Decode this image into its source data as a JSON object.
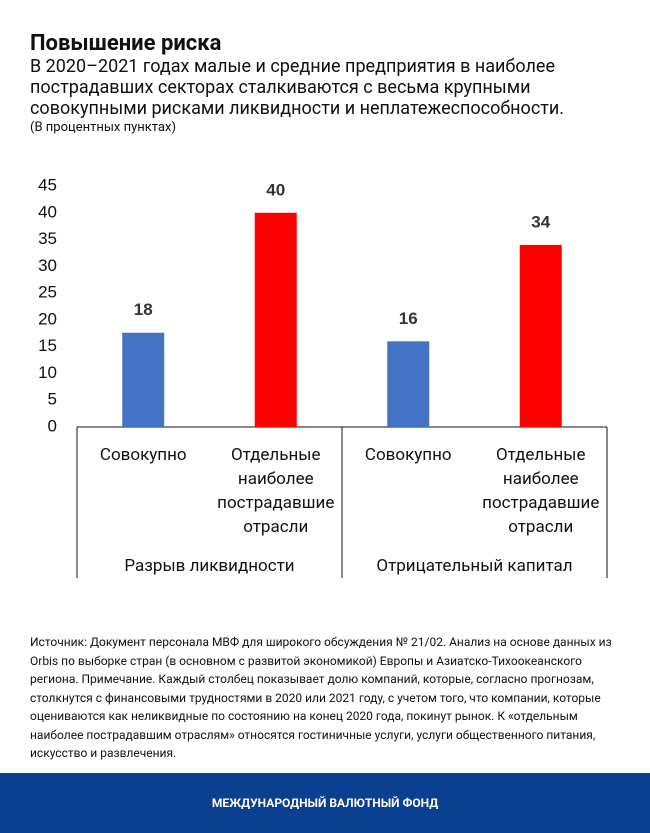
{
  "header": {
    "title": "Повышение риска",
    "subtitle": "В 2020–2021 годах малые и средние предприятия в наиболее пострадавших секторах сталкиваются с весьма крупными совокупными рисками ликвидности и неплатежеспособности.",
    "units": "(В процентных пунктах)"
  },
  "chart_data": {
    "type": "bar",
    "categories": [
      "Совокупно",
      "Отдельные наиболее пострадавшие отрасли",
      "Совокупно",
      "Отдельные наиболее пострадавшие отрасли"
    ],
    "groups": [
      "Разрыв ликвидности",
      "Отрицательный капитал"
    ],
    "values": [
      17.6,
      40,
      16,
      34
    ],
    "value_labels": [
      "18",
      "40",
      "16",
      "34"
    ],
    "colors": [
      "#4472c4",
      "#ff0000",
      "#4472c4",
      "#ff0000"
    ],
    "ylim": [
      0,
      45
    ],
    "yticks": [
      0,
      5,
      10,
      15,
      20,
      25,
      30,
      35,
      40,
      45
    ],
    "grid": false
  },
  "note": "Источник: Документ персонала МВФ для широкого обсуждения № 21/02. Анализ на основе данных из Orbis по выборке стран (в основном с развитой экономикой) Европы и Азиатско-Тихоокеанского региона. Примечание. Каждый столбец показывает долю компаний, которые, согласно прогнозам, столкнутся с финансовыми трудностями в 2020 или 2021 году, с учетом того, что компании, которые оцениваются как неликвидные по состоянию на конец 2020 года, покинут рынок. К «отдельным наиболее пострадавшим отраслям» относятся гостиничные услуги, услуги общественного питания, искусство и развлечения.",
  "footer": "МЕЖДУНАРОДНЫЙ ВАЛЮТНЫЙ ФОНД"
}
